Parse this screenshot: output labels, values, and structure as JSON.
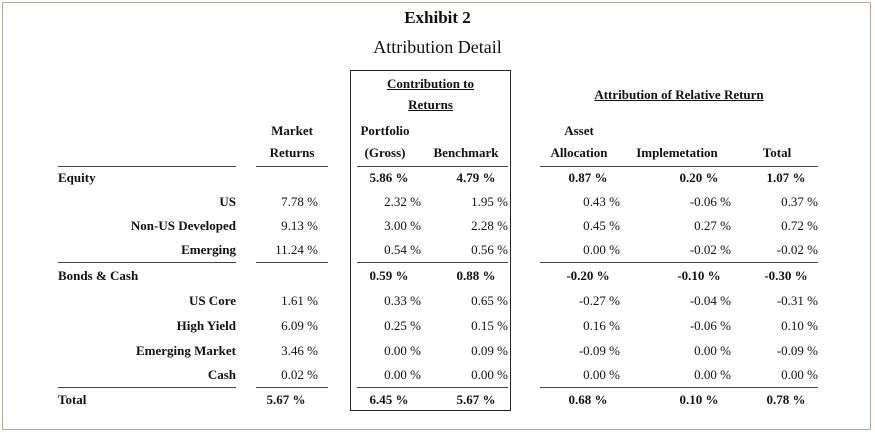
{
  "title": "Exhibit 2",
  "subtitle": "Attribution Detail",
  "headers": {
    "contribution_line1": "Contribution to",
    "contribution_line2": "Returns",
    "attribution": "Attribution of Relative Return",
    "market_line1": "Market",
    "market_line2": "Returns",
    "portfolio_line1": "Portfolio",
    "portfolio_line2": "(Gross)",
    "benchmark": "Benchmark",
    "asset_line1": "Asset",
    "asset_line2": "Allocation",
    "implementation": "Implemetation",
    "total": "Total"
  },
  "rows": [
    {
      "label": "Equity",
      "market": "",
      "portfolio": "5.86 %",
      "benchmark": "4.79 %",
      "allocation": "0.87 %",
      "implementation": "0.20 %",
      "total": "1.07 %",
      "kind": "group"
    },
    {
      "label": "US",
      "market": "7.78 %",
      "portfolio": "2.32 %",
      "benchmark": "1.95 %",
      "allocation": "0.43 %",
      "implementation": "-0.06 %",
      "total": "0.37 %",
      "kind": "sub"
    },
    {
      "label": "Non-US Developed",
      "market": "9.13 %",
      "portfolio": "3.00 %",
      "benchmark": "2.28 %",
      "allocation": "0.45 %",
      "implementation": "0.27 %",
      "total": "0.72 %",
      "kind": "sub"
    },
    {
      "label": "Emerging",
      "market": "11.24 %",
      "portfolio": "0.54 %",
      "benchmark": "0.56 %",
      "allocation": "0.00 %",
      "implementation": "-0.02 %",
      "total": "-0.02 %",
      "kind": "sub"
    },
    {
      "label": "Bonds & Cash",
      "market": "",
      "portfolio": "0.59 %",
      "benchmark": "0.88 %",
      "allocation": "-0.20 %",
      "implementation": "-0.10 %",
      "total": "-0.30 %",
      "kind": "group"
    },
    {
      "label": "US Core",
      "market": "1.61 %",
      "portfolio": "0.33 %",
      "benchmark": "0.65 %",
      "allocation": "-0.27 %",
      "implementation": "-0.04 %",
      "total": "-0.31 %",
      "kind": "sub"
    },
    {
      "label": "High Yield",
      "market": "6.09 %",
      "portfolio": "0.25 %",
      "benchmark": "0.15 %",
      "allocation": "0.16 %",
      "implementation": "-0.06 %",
      "total": "0.10 %",
      "kind": "sub"
    },
    {
      "label": "Emerging Market",
      "market": "3.46 %",
      "portfolio": "0.00 %",
      "benchmark": "0.09 %",
      "allocation": "-0.09 %",
      "implementation": "0.00 %",
      "total": "-0.09 %",
      "kind": "sub"
    },
    {
      "label": "Cash",
      "market": "0.02 %",
      "portfolio": "0.00 %",
      "benchmark": "0.00 %",
      "allocation": "0.00 %",
      "implementation": "0.00 %",
      "total": "0.00 %",
      "kind": "sub"
    },
    {
      "label": "Total",
      "market": "5.67 %",
      "portfolio": "6.45 %",
      "benchmark": "5.67 %",
      "allocation": "0.68 %",
      "implementation": "0.10 %",
      "total": "0.78 %",
      "kind": "total"
    }
  ]
}
